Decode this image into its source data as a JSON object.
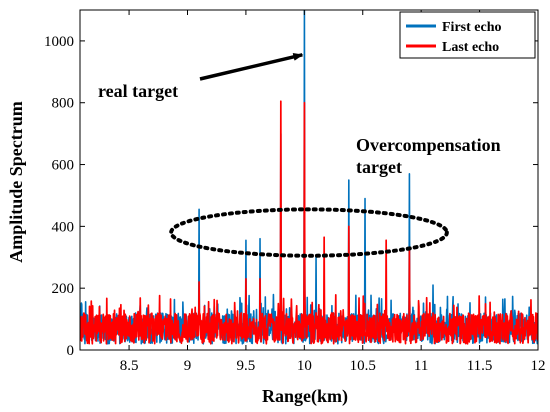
{
  "chart_data": {
    "type": "line",
    "title": "",
    "xlabel": "Range(km)",
    "ylabel": "Amplitude Spectrum",
    "xlim": [
      8.08,
      12.0
    ],
    "ylim": [
      0,
      1100
    ],
    "xticks": [
      8.5,
      9,
      9.5,
      10,
      10.5,
      11,
      11.5,
      12
    ],
    "xtick_labels": [
      "8.5",
      "9",
      "9.5",
      "10",
      "10.5",
      "11",
      "11.5",
      "12"
    ],
    "yticks": [
      0,
      200,
      400,
      600,
      800,
      1000
    ],
    "ytick_labels": [
      "0",
      "200",
      "400",
      "600",
      "800",
      "1000"
    ],
    "grid": false,
    "legend_position": "top-right",
    "noise_floor": {
      "range": [
        20,
        180
      ],
      "typical": 70
    },
    "series": [
      {
        "name": "First echo",
        "color": "#0072BD",
        "peaks": [
          {
            "x": 9.1,
            "y": 455
          },
          {
            "x": 9.5,
            "y": 355
          },
          {
            "x": 9.62,
            "y": 360
          },
          {
            "x": 9.8,
            "y": 700
          },
          {
            "x": 10.0,
            "y": 1100
          },
          {
            "x": 10.1,
            "y": 300
          },
          {
            "x": 10.38,
            "y": 550
          },
          {
            "x": 10.52,
            "y": 490
          },
          {
            "x": 10.9,
            "y": 570
          },
          {
            "x": 11.1,
            "y": 210
          }
        ]
      },
      {
        "name": "Last echo",
        "color": "#FF0000",
        "peaks": [
          {
            "x": 9.1,
            "y": 220
          },
          {
            "x": 9.5,
            "y": 230
          },
          {
            "x": 9.62,
            "y": 230
          },
          {
            "x": 9.8,
            "y": 805
          },
          {
            "x": 10.0,
            "y": 800
          },
          {
            "x": 10.17,
            "y": 365
          },
          {
            "x": 10.38,
            "y": 400
          },
          {
            "x": 10.7,
            "y": 355
          },
          {
            "x": 10.9,
            "y": 330
          }
        ]
      }
    ],
    "annotations": [
      {
        "text": "real target",
        "arrow_to": {
          "x": 10.0,
          "y": 955
        }
      },
      {
        "text_lines": [
          "Overcompensation",
          "target"
        ]
      }
    ],
    "ellipse": {
      "cx": 10.04,
      "cy": 380,
      "rx": 1.18,
      "ry": 75,
      "style": "dotted"
    }
  }
}
